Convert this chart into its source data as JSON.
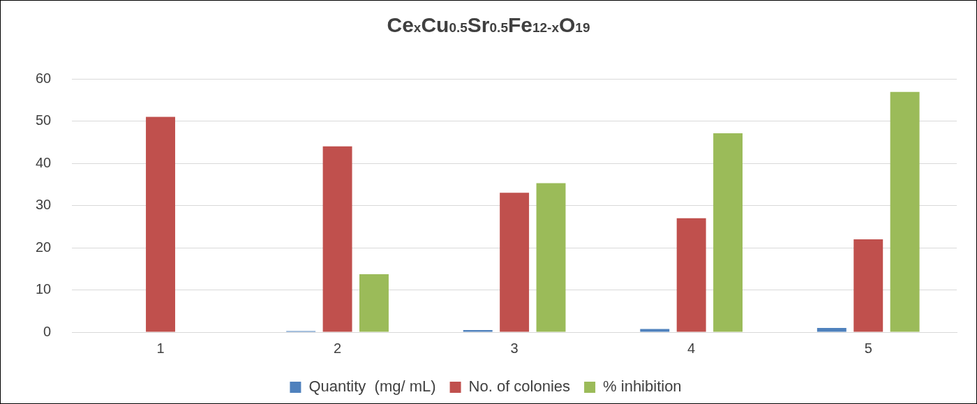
{
  "chart_data": {
    "type": "bar",
    "title": "Ce$_{x}$Cu$_{0.5}$Sr$_{0.5}$Fe$_{12-x}$O$_{19}$",
    "categories": [
      "1",
      "2",
      "3",
      "4",
      "5"
    ],
    "series": [
      {
        "name": "Quantity  (mg/ mL)",
        "color": "#4f81bd",
        "values": [
          0,
          0.25,
          0.5,
          0.75,
          1
        ]
      },
      {
        "name": "No. of colonies",
        "color": "#c0504d",
        "values": [
          51,
          44,
          33,
          27,
          22
        ]
      },
      {
        "name": "% inhibition",
        "color": "#9bbb59",
        "values": [
          0,
          13.7,
          35.3,
          47.1,
          56.9
        ]
      }
    ],
    "ylim": [
      0,
      60
    ],
    "yticks": [
      0,
      10,
      20,
      30,
      40,
      50,
      60
    ],
    "grid": "y",
    "legend": "bottom"
  }
}
